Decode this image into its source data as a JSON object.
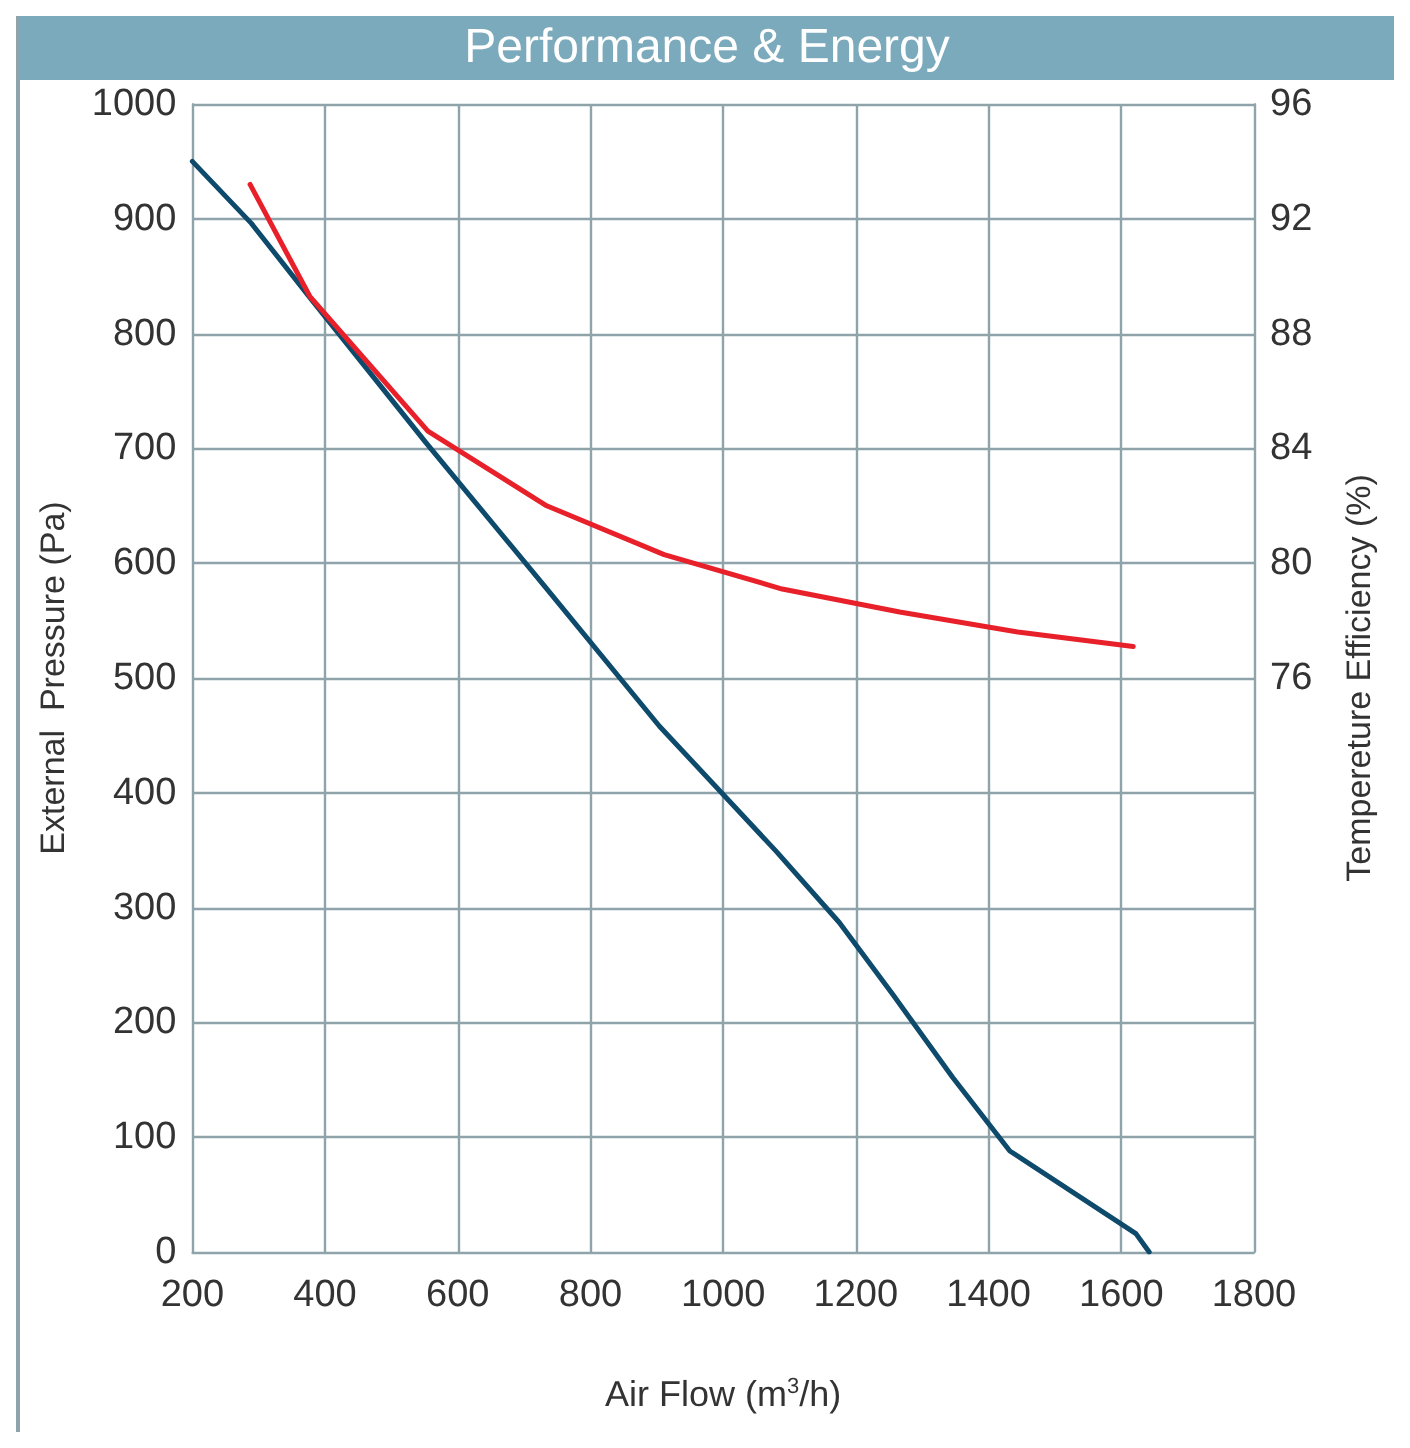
{
  "chart_data": {
    "type": "line",
    "title": "Performance & Energy",
    "xlabel": "Air Flow (m$^{3}$/h)",
    "ylabel": "External  Pressure (Pa)",
    "y2label": "Tempereture Efficiency (%)",
    "xlim": [
      200,
      1800
    ],
    "xticks": [
      200,
      400,
      600,
      800,
      1000,
      1200,
      1400,
      1600,
      1800
    ],
    "ylim": [
      0,
      1000
    ],
    "yticks": [
      0,
      100,
      200,
      300,
      400,
      500,
      600,
      700,
      800,
      900,
      1000
    ],
    "y2lim": [
      56,
      96
    ],
    "y2ticks": [
      76,
      80,
      84,
      88,
      92,
      96
    ],
    "grid": true,
    "marker": "none",
    "line_style": "solid",
    "series": [
      {
        "color": "#0d4a6b",
        "x": [
          200,
          289,
          379,
          552,
          728,
          904,
          1080,
          1175,
          1256,
          1346,
          1432,
          1622,
          1642
        ],
        "values": [
          950,
          896,
          830,
          705,
          582,
          458,
          349,
          287,
          224,
          152,
          88,
          16,
          0
        ]
      },
      {
        "color": "#e8202a",
        "axis": "y2",
        "x": [
          287,
          377,
          555,
          734,
          911,
          1089,
          1266,
          1444,
          1618
        ],
        "values": [
          93.2,
          89.3,
          84.6,
          82.0,
          80.3,
          79.1,
          78.3,
          77.6,
          77.1
        ]
      }
    ]
  }
}
